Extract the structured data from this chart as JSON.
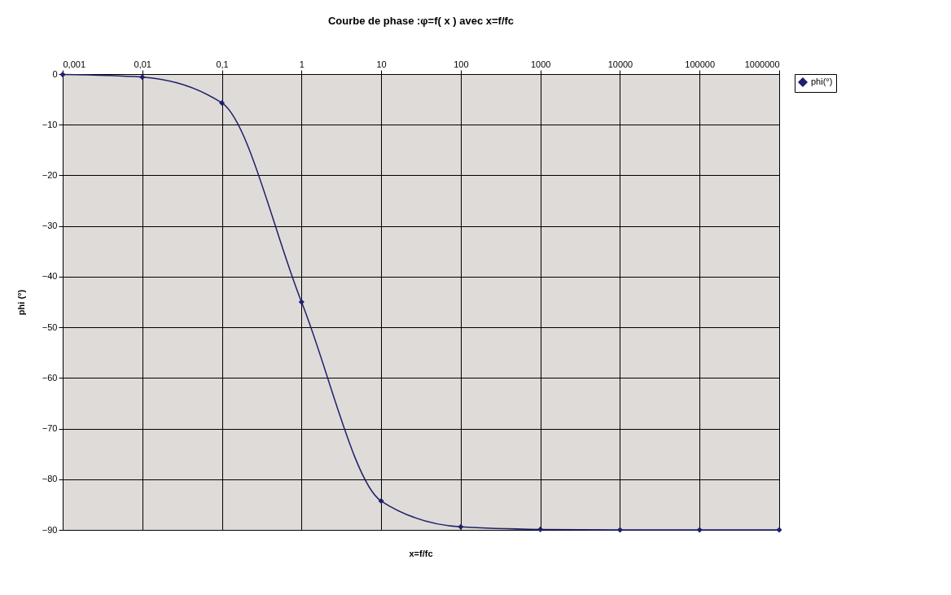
{
  "chart_data": {
    "type": "line",
    "title": "Courbe de phase :φ=f( x ) avec x=f/fc",
    "xlabel": "x=f/fc",
    "ylabel": "phi (°)",
    "categories": [
      "0,001",
      "0,01",
      "0,1",
      "1",
      "10",
      "100",
      "1000",
      "10000",
      "100000",
      "1000000"
    ],
    "series": [
      {
        "name": "phi(°)",
        "color": "#1f1f6e",
        "values": [
          -0.1,
          -0.6,
          -5.7,
          -45,
          -84.3,
          -89.4,
          -89.9,
          -90,
          -90,
          -90
        ]
      }
    ],
    "ylim": [
      -90,
      0
    ],
    "yticks": [
      0,
      -10,
      -20,
      -30,
      -40,
      -50,
      -60,
      -70,
      -80,
      -90
    ],
    "grid": true,
    "legend": "right",
    "marker": "diamond",
    "line_style": "solid"
  }
}
